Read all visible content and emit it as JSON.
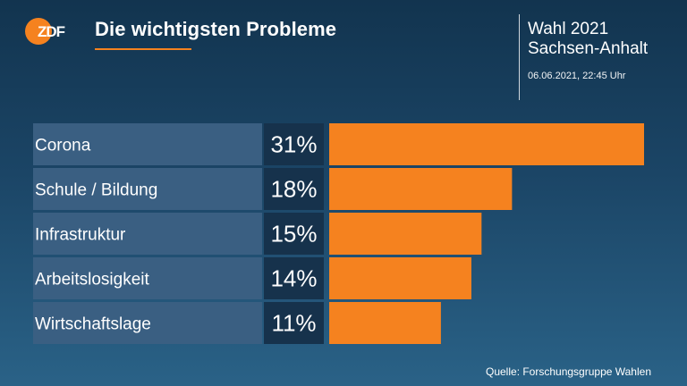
{
  "header": {
    "logo_text": "ZDF",
    "title": "Die wichtigsten Probleme",
    "election_line1": "Wahl 2021",
    "election_line2": "Sachsen-Anhalt",
    "timestamp": "06.06.2021, 22:45 Uhr"
  },
  "source": "Quelle: Forschungsgruppe Wahlen",
  "colors": {
    "accent": "#f5821f",
    "label_bg": "#3a5f82",
    "value_bg": "#16324c"
  },
  "chart_data": {
    "type": "bar",
    "orientation": "horizontal",
    "categories": [
      "Corona",
      "Schule / Bildung",
      "Infrastruktur",
      "Arbeitslosigkeit",
      "Wirtschaftslage"
    ],
    "values": [
      31,
      18,
      15,
      14,
      11
    ],
    "value_labels": [
      "31%",
      "18%",
      "15%",
      "14%",
      "11%"
    ],
    "unit": "%",
    "xlim": [
      0,
      31
    ]
  }
}
